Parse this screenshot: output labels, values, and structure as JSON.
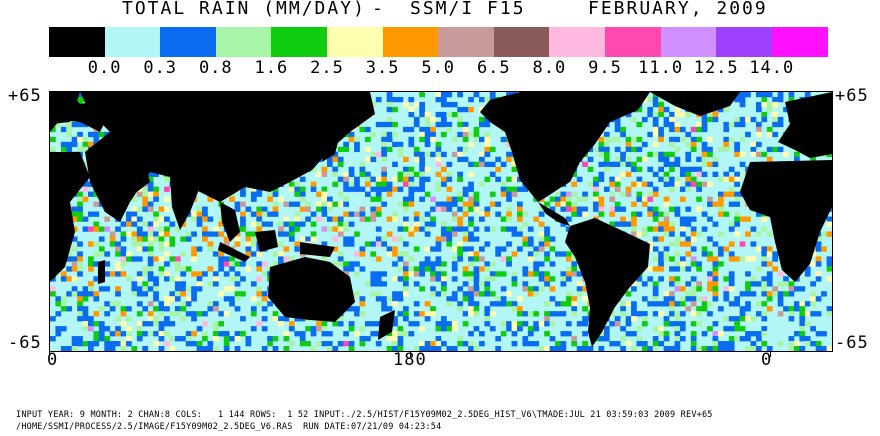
{
  "title": {
    "product": "TOTAL RAIN (MM/DAY)",
    "separator": "-",
    "sensor": "SSM/I F15",
    "period": "FEBRUARY, 2009"
  },
  "legend": {
    "colors": [
      "#000000",
      "#b3f6f6",
      "#0a6cf0",
      "#a8f5a8",
      "#10cc10",
      "#ffffb0",
      "#ff9900",
      "#c89a9a",
      "#8a5a5a",
      "#ffb8e0",
      "#ff48b0",
      "#d090ff",
      "#a040ff",
      "#ff10ff"
    ],
    "labels": [
      "0.0",
      "0.3",
      "0.8",
      "1.6",
      "2.5",
      "3.5",
      "5.0",
      "6.5",
      "8.0",
      "9.5",
      "11.0",
      "12.5",
      "14.0"
    ]
  },
  "axes": {
    "lat_top": "+65",
    "lat_bottom": "-65",
    "lon_labels": [
      "0",
      "180",
      "0"
    ]
  },
  "footer": {
    "line1": "INPUT YEAR: 9 MONTH: 2 CHAN:8 COLS:   1 144 ROWS:  1 52 INPUT:./2.5/HIST/F15Y09M02_2.5DEG_HIST_V6\\TMADE:JUL 21 03:59:03 2009 REV+65",
    "line2": "/HOME/SSMI/PROCESS/2.5/IMAGE/F15Y09M02_2.5DEG_V6.RAS  RUN DATE:07/21/09 04:23:54"
  }
}
